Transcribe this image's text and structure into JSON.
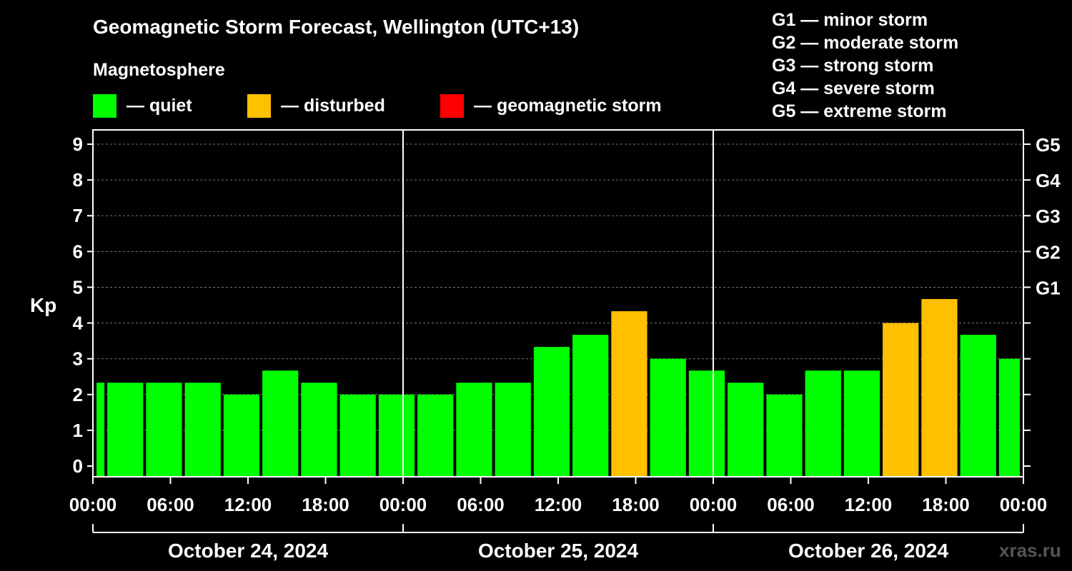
{
  "chart_data": {
    "type": "bar",
    "title": "Geomagnetic Storm Forecast, Wellington (UTC+13)",
    "subtitle": "Magnetosphere",
    "ylabel": "Kp",
    "ylim": [
      -0.3,
      9.4
    ],
    "yticks": [
      "0",
      "1",
      "2",
      "3",
      "4",
      "5",
      "6",
      "7",
      "8",
      "9"
    ],
    "storm_levels": [
      {
        "kp": 5,
        "label": "G1"
      },
      {
        "kp": 6,
        "label": "G2"
      },
      {
        "kp": 7,
        "label": "G3"
      },
      {
        "kp": 8,
        "label": "G4"
      },
      {
        "kp": 9,
        "label": "G5"
      }
    ],
    "x_hours_range": [
      0,
      72
    ],
    "xtick_labels": [
      "00:00",
      "06:00",
      "12:00",
      "18:00",
      "00:00",
      "06:00",
      "12:00",
      "18:00",
      "00:00",
      "06:00",
      "12:00",
      "18:00",
      "00:00"
    ],
    "days": [
      "October 24, 2024",
      "October 25, 2024",
      "October 26, 2024"
    ],
    "bars": [
      {
        "start": 0,
        "end": 1,
        "kp": 2.33,
        "status": "quiet"
      },
      {
        "start": 1,
        "end": 4,
        "kp": 2.33,
        "status": "quiet"
      },
      {
        "start": 4,
        "end": 7,
        "kp": 2.33,
        "status": "quiet"
      },
      {
        "start": 7,
        "end": 10,
        "kp": 2.33,
        "status": "quiet"
      },
      {
        "start": 10,
        "end": 13,
        "kp": 2.0,
        "status": "quiet"
      },
      {
        "start": 13,
        "end": 16,
        "kp": 2.67,
        "status": "quiet"
      },
      {
        "start": 16,
        "end": 19,
        "kp": 2.33,
        "status": "quiet"
      },
      {
        "start": 19,
        "end": 22,
        "kp": 2.0,
        "status": "quiet"
      },
      {
        "start": 22,
        "end": 25,
        "kp": 2.0,
        "status": "quiet"
      },
      {
        "start": 25,
        "end": 28,
        "kp": 2.0,
        "status": "quiet"
      },
      {
        "start": 28,
        "end": 31,
        "kp": 2.33,
        "status": "quiet"
      },
      {
        "start": 31,
        "end": 34,
        "kp": 2.33,
        "status": "quiet"
      },
      {
        "start": 34,
        "end": 37,
        "kp": 3.33,
        "status": "quiet"
      },
      {
        "start": 37,
        "end": 40,
        "kp": 3.67,
        "status": "quiet"
      },
      {
        "start": 40,
        "end": 43,
        "kp": 4.33,
        "status": "disturbed"
      },
      {
        "start": 43,
        "end": 46,
        "kp": 3.0,
        "status": "quiet"
      },
      {
        "start": 46,
        "end": 49,
        "kp": 2.67,
        "status": "quiet"
      },
      {
        "start": 49,
        "end": 52,
        "kp": 2.33,
        "status": "quiet"
      },
      {
        "start": 52,
        "end": 55,
        "kp": 2.0,
        "status": "quiet"
      },
      {
        "start": 55,
        "end": 58,
        "kp": 2.67,
        "status": "quiet"
      },
      {
        "start": 58,
        "end": 61,
        "kp": 2.67,
        "status": "quiet"
      },
      {
        "start": 61,
        "end": 64,
        "kp": 4.0,
        "status": "disturbed"
      },
      {
        "start": 64,
        "end": 67,
        "kp": 4.67,
        "status": "disturbed"
      },
      {
        "start": 67,
        "end": 70,
        "kp": 3.67,
        "status": "quiet"
      },
      {
        "start": 70,
        "end": 72,
        "kp": 3.0,
        "status": "quiet"
      }
    ],
    "colors": {
      "quiet": "#00ff00",
      "disturbed": "#ffc000",
      "storm": "#ff0000"
    }
  },
  "legend": {
    "quiet_label": "— quiet",
    "disturbed_label": "— disturbed",
    "storm_label": "— geomagnetic storm"
  },
  "g_legend": [
    "G1 — minor storm",
    "G2 — moderate storm",
    "G3 — strong storm",
    "G4 — severe storm",
    "G5 — extreme storm"
  ],
  "watermark": "xras.ru"
}
